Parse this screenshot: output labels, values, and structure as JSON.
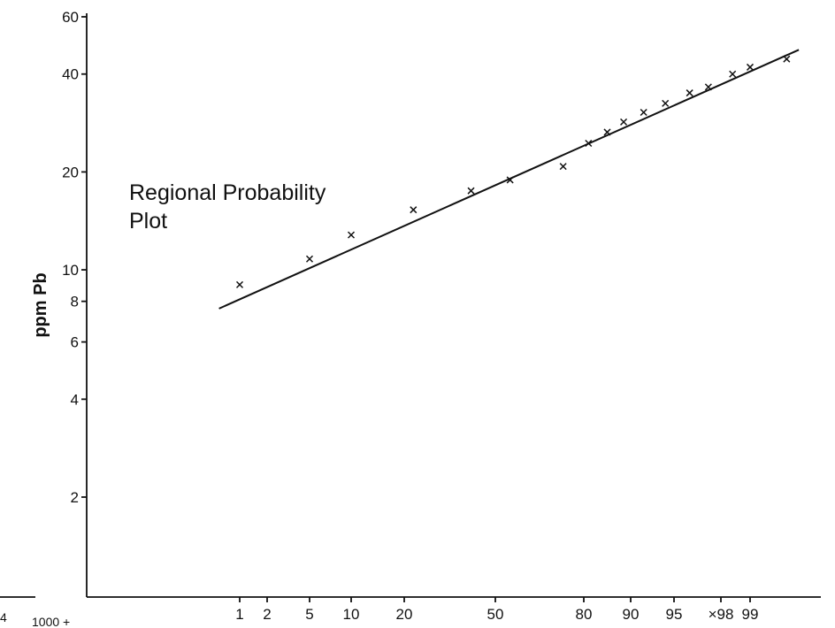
{
  "chart_data": {
    "type": "scatter",
    "title": [
      "Regional Probability",
      "Plot"
    ],
    "ylabel": "ppm Pb",
    "xlabel": "",
    "y_scale": "log",
    "x_scale": "normal-probability",
    "y_ticks": [
      60,
      40,
      20,
      10,
      8,
      6,
      4,
      2
    ],
    "x_ticks": [
      1,
      2,
      5,
      10,
      20,
      50,
      80,
      90,
      95,
      98,
      99
    ],
    "x_tick_labels": [
      "1",
      "2",
      "5",
      "10",
      "20",
      "50",
      "80",
      "90",
      "95",
      "×98",
      "99"
    ],
    "points": [
      {
        "x": 1,
        "y": 9.0
      },
      {
        "x": 5,
        "y": 10.8
      },
      {
        "x": 10,
        "y": 12.8
      },
      {
        "x": 23,
        "y": 15.3
      },
      {
        "x": 42,
        "y": 17.5
      },
      {
        "x": 55,
        "y": 18.9
      },
      {
        "x": 73,
        "y": 20.8
      },
      {
        "x": 81,
        "y": 24.5
      },
      {
        "x": 85,
        "y": 26.5
      },
      {
        "x": 88.5,
        "y": 28.5
      },
      {
        "x": 91.5,
        "y": 30.5
      },
      {
        "x": 94,
        "y": 32.5
      },
      {
        "x": 96,
        "y": 35.0
      },
      {
        "x": 97.2,
        "y": 36.5
      },
      {
        "x": 98.4,
        "y": 40.0
      },
      {
        "x": 99,
        "y": 42.0
      },
      {
        "x": 99.6,
        "y": 44.5
      }
    ],
    "fit_line": [
      {
        "x": 0.7,
        "y": 7.6
      },
      {
        "x": 99.8,
        "y": 47.5
      }
    ]
  },
  "fragments": {
    "bottom_left": "1000 +",
    "corner": "4"
  }
}
